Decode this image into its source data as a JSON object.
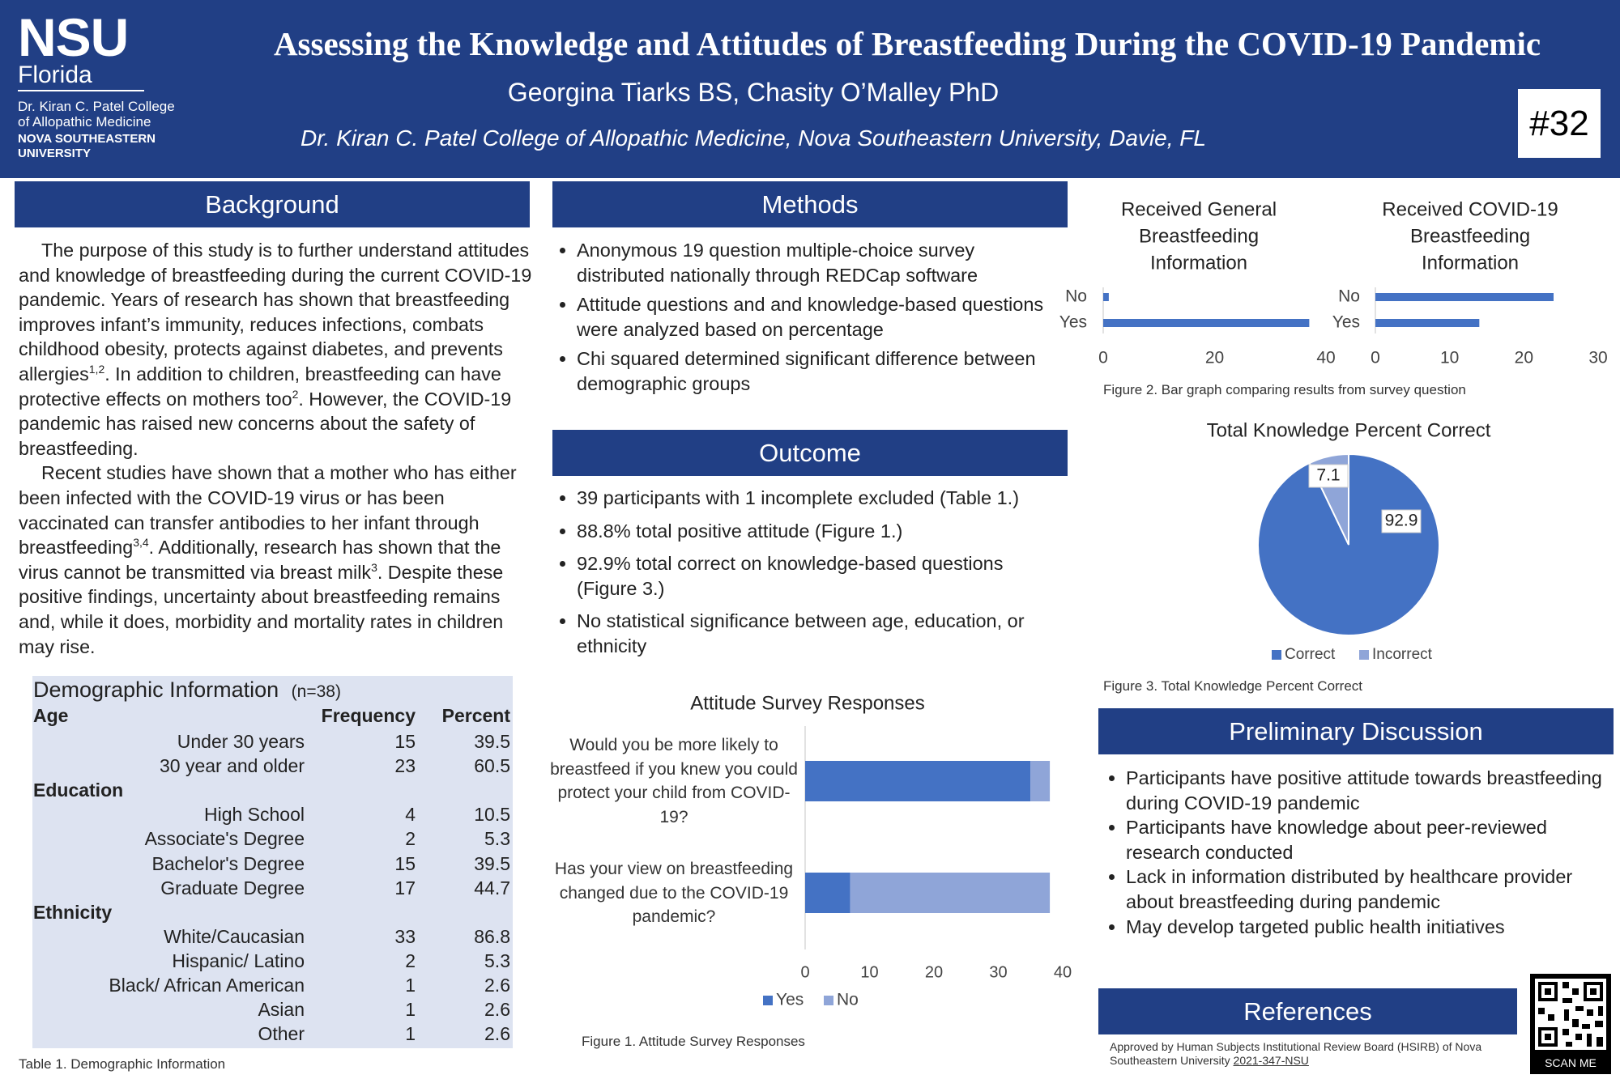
{
  "header": {
    "logo": {
      "mark": "NSU",
      "campus": "Florida",
      "college": [
        "Dr. Kiran C. Patel College",
        "of Allopathic Medicine"
      ],
      "university": [
        "NOVA SOUTHEASTERN",
        "UNIVERSITY"
      ]
    },
    "title": "Assessing the Knowledge and Attitudes of Breastfeeding During the COVID-19 Pandemic",
    "authors": "Georgina Tiarks BS, Chasity O’Malley PhD",
    "affiliation": "Dr. Kiran C. Patel College of Allopathic Medicine, Nova Southeastern University, Davie, FL",
    "poster_number": "#32"
  },
  "background": {
    "heading": "Background",
    "paragraphs": [
      [
        "The purpose of this study is to further understand attitudes and knowledge of breastfeeding during the current COVID-19 pandemic. Years of research has shown that breastfeeding improves infant’s immunity, reduces infections, combats childhood obesity, protects against diabetes, and prevents allergies",
        {
          "sup": "1,2"
        },
        ". In addition to children, breastfeeding can have protective effects on mothers too",
        {
          "sup": "2"
        },
        ". However, the COVID-19 pandemic has raised new concerns about the safety of breastfeeding."
      ],
      [
        "Recent studies have shown that a mother who has either been infected with the COVID-19 virus or has been vaccinated can transfer antibodies to her infant through breastfeeding",
        {
          "sup": "3,4"
        },
        ". Additionally, research has shown that the virus cannot be transmitted via breast milk",
        {
          "sup": "3"
        },
        ". Despite these positive findings, uncertainty about breastfeeding remains and, while it does, morbidity and mortality rates in children may rise."
      ]
    ]
  },
  "table": {
    "title": "Demographic Information",
    "n": "(n=38)",
    "header": [
      "Age",
      "Frequency",
      "Percent"
    ],
    "rows": [
      [
        "Under 30 years",
        15,
        39.5
      ],
      [
        "30 year and older",
        23,
        60.5
      ],
      [
        "Education"
      ],
      [
        "High School",
        4,
        10.5
      ],
      [
        "Associate's Degree",
        2,
        5.3
      ],
      [
        "Bachelor's Degree",
        15,
        39.5
      ],
      [
        "Graduate Degree",
        17,
        44.7
      ],
      [
        "Ethnicity"
      ],
      [
        "White/Caucasian",
        33,
        86.8
      ],
      [
        "Hispanic/ Latino",
        2,
        5.3
      ],
      [
        "Black/ African American",
        1,
        2.6
      ],
      [
        "Asian",
        1,
        2.6
      ],
      [
        "Other",
        1,
        2.6
      ]
    ],
    "caption": "Table 1. Demographic Information"
  },
  "methods": {
    "heading": "Methods",
    "bullets": [
      "Anonymous 19 question multiple-choice survey distributed nationally through REDCap software",
      "Attitude questions and and knowledge-based questions were analyzed based on percentage",
      "Chi squared determined significant difference between demographic groups"
    ]
  },
  "outcome": {
    "heading": "Outcome",
    "bullets": [
      "39 participants with 1 incomplete excluded (Table 1.)",
      "88.8% total positive attitude (Figure 1.)",
      "92.9% total correct on knowledge-based questions (Figure 3.)",
      "No statistical significance between age, education, or ethnicity"
    ]
  },
  "figure1": {
    "caption": "Figure 1. Attitude Survey Responses",
    "chart": {
      "type": "bar",
      "orientation": "horizontal",
      "stacked": true,
      "title": "Attitude Survey Responses",
      "categories": [
        "Would you be more likely to breastfeed if you knew you could protect your child from COVID-19?",
        "Has your view on breastfeeding changed due to the COVID-19 pandemic?"
      ],
      "series": [
        {
          "name": "Yes",
          "color": "#4472c4",
          "values": [
            35,
            7
          ]
        },
        {
          "name": "No",
          "color": "#8fa5d8",
          "values": [
            3,
            31
          ]
        }
      ],
      "xlim": [
        0,
        40
      ],
      "xticks": [
        0,
        10,
        20,
        30,
        40
      ],
      "legend": "bottom"
    }
  },
  "figure2": {
    "caption": "Figure 2. Bar graph comparing results from survey question",
    "charts": [
      {
        "type": "bar",
        "orientation": "horizontal",
        "title": "Received General Breastfeeding Information",
        "categories": [
          "No",
          "Yes"
        ],
        "values": [
          1,
          37
        ],
        "color": "#4472c4",
        "xlim": [
          0,
          40
        ],
        "xticks": [
          0,
          20,
          40
        ]
      },
      {
        "type": "bar",
        "orientation": "horizontal",
        "title": "Received COVID-19 Breastfeeding Information",
        "categories": [
          "No",
          "Yes"
        ],
        "values": [
          24,
          14
        ],
        "color": "#4472c4",
        "xlim": [
          0,
          30
        ],
        "xticks": [
          0,
          10,
          20,
          30
        ]
      }
    ]
  },
  "figure3": {
    "caption": "Figure 3. Total Knowledge Percent Correct",
    "chart": {
      "type": "pie",
      "title": "Total Knowledge Percent Correct",
      "categories": [
        "Correct",
        "Incorrect"
      ],
      "values": [
        92.9,
        7.1
      ],
      "colors": [
        "#4472c4",
        "#8fa5d8"
      ],
      "legend": "bottom"
    }
  },
  "discussion": {
    "heading": "Preliminary Discussion",
    "bullets": [
      "Participants have positive attitude towards breastfeeding during COVID-19 pandemic",
      "Participants have knowledge about peer-reviewed research conducted",
      "Lack in information distributed by healthcare provider about breastfeeding during pandemic",
      "May develop targeted public health initiatives"
    ]
  },
  "references": {
    "heading": "References",
    "text": "Approved by Human Subjects Institutional Review Board (HSIRB) of Nova Southeastern University",
    "id": "2021-347-NSU"
  },
  "qr": {
    "label": "SCAN ME"
  }
}
